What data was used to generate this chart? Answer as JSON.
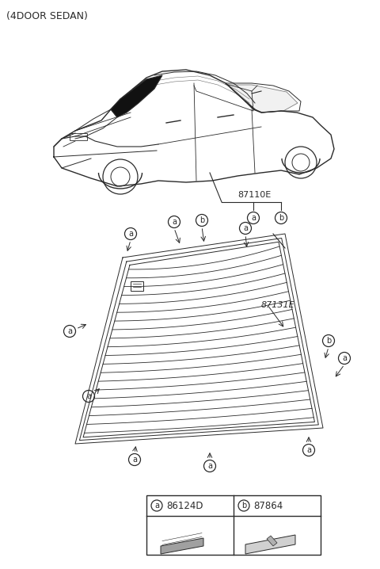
{
  "title": "(4DOOR SEDAN)",
  "bg_color": "#ffffff",
  "line_color": "#2a2a2a",
  "legend_a_code": "86124D",
  "legend_b_code": "87864",
  "part_87110E": "87110E",
  "part_87131E": "87131E"
}
